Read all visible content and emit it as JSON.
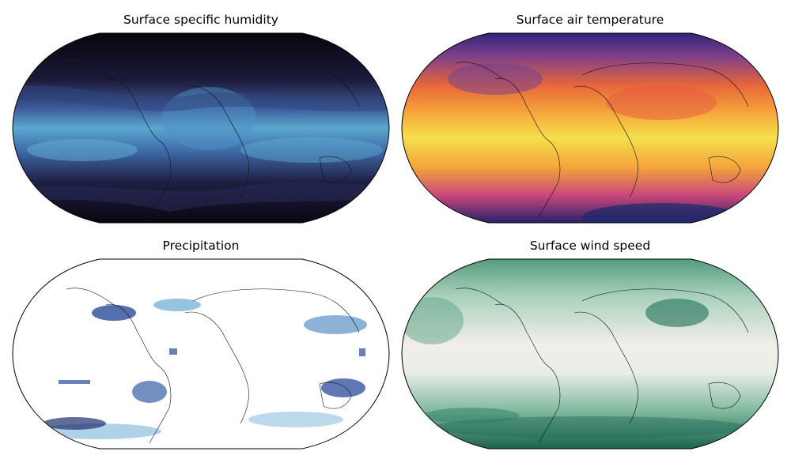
{
  "panels": [
    {
      "id": "hum",
      "title": "Surface specific humidity",
      "colormap": "rain-blues-dark",
      "colors": {
        "pole": "#08060f",
        "mid": "#2a2f63",
        "equator": "#5aa8d0"
      }
    },
    {
      "id": "temp",
      "title": "Surface air temperature",
      "colormap": "thermal",
      "colors": {
        "pole": "#2a1f6e",
        "mid": "#e4653a",
        "equator": "#f4e24a"
      }
    },
    {
      "id": "prec",
      "title": "Precipitation",
      "colormap": "blues",
      "colors": {
        "low": "#ffffff",
        "mid": "#7fb6d9",
        "high": "#1f3a8a"
      }
    },
    {
      "id": "wind",
      "title": "Surface wind speed",
      "colormap": "tempo-green",
      "colors": {
        "low": "#f4f0ed",
        "mid": "#8fc4a8",
        "high": "#0f5e4a"
      }
    }
  ],
  "projection": "Robinson",
  "coastlines": true
}
